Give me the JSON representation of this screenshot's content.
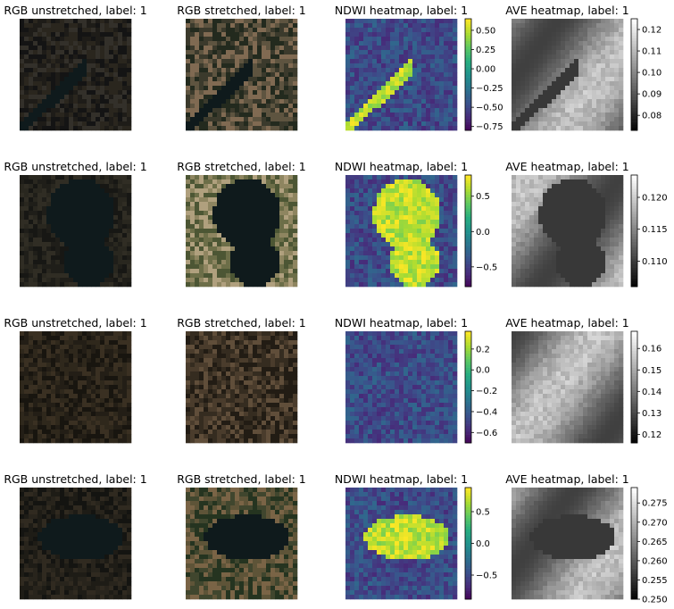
{
  "chart_data": [
    {
      "type": "image",
      "row": 0,
      "col": 0,
      "title": "RGB unstretched, label: 1",
      "kind": "rgb",
      "palette": [
        "#141414",
        "#1e1c18",
        "#2a261e",
        "#33302a"
      ],
      "water": "diag"
    },
    {
      "type": "image",
      "row": 0,
      "col": 1,
      "title": "RGB stretched, label: 1",
      "kind": "rgb",
      "palette": [
        "#232a1e",
        "#3b3a2c",
        "#5e5440",
        "#806a52"
      ],
      "water": "diag"
    },
    {
      "type": "heatmap",
      "row": 0,
      "col": 2,
      "title": "NDWI heatmap, label: 1",
      "cmap": "viridis",
      "colorbar": {
        "ticks": [
          0.5,
          0.25,
          0.0,
          -0.25,
          -0.5,
          -0.75
        ],
        "tick_labels": [
          "0.50",
          "0.25",
          "0.00",
          "−0.25",
          "−0.50",
          "−0.75"
        ],
        "range": [
          -0.8,
          0.65
        ]
      },
      "water": "diag"
    },
    {
      "type": "heatmap",
      "row": 0,
      "col": 3,
      "title": "AVE heatmap, label: 1",
      "cmap": "gray",
      "colorbar": {
        "ticks": [
          0.12,
          0.11,
          0.1,
          0.09,
          0.08
        ],
        "tick_labels": [
          "0.12",
          "0.11",
          "0.10",
          "0.09",
          "0.08"
        ],
        "range": [
          0.073,
          0.125
        ]
      },
      "water": "diag"
    },
    {
      "type": "image",
      "row": 1,
      "col": 0,
      "title": "RGB unstretched, label: 1",
      "kind": "rgb",
      "palette": [
        "#171714",
        "#1f1e19",
        "#29271f",
        "#302d24"
      ],
      "water": "seahorse"
    },
    {
      "type": "image",
      "row": 1,
      "col": 1,
      "title": "RGB stretched, label: 1",
      "kind": "rgb",
      "palette": [
        "#4c5634",
        "#6c6e48",
        "#8e8560",
        "#b0a07e"
      ],
      "water": "seahorse"
    },
    {
      "type": "heatmap",
      "row": 1,
      "col": 2,
      "title": "NDWI heatmap, label: 1",
      "cmap": "viridis",
      "colorbar": {
        "ticks": [
          0.5,
          0.0,
          -0.5
        ],
        "tick_labels": [
          "0.5",
          "0.0",
          "−0.5"
        ],
        "range": [
          -0.78,
          0.8
        ]
      },
      "water": "seahorse"
    },
    {
      "type": "heatmap",
      "row": 1,
      "col": 3,
      "title": "AVE heatmap, label: 1",
      "cmap": "gray",
      "colorbar": {
        "ticks": [
          0.12,
          0.115,
          0.11
        ],
        "tick_labels": [
          "0.120",
          "0.115",
          "0.110"
        ],
        "range": [
          0.106,
          0.1235
        ]
      },
      "water": "seahorse"
    },
    {
      "type": "image",
      "row": 2,
      "col": 0,
      "title": "RGB unstretched, label: 1",
      "kind": "rgb",
      "palette": [
        "#18150f",
        "#231e16",
        "#2f281c",
        "#3a3022"
      ],
      "water": "none"
    },
    {
      "type": "image",
      "row": 2,
      "col": 1,
      "title": "RGB stretched, label: 1",
      "kind": "rgb",
      "palette": [
        "#221c14",
        "#352c20",
        "#4a3c2c",
        "#604e3a"
      ],
      "water": "none"
    },
    {
      "type": "heatmap",
      "row": 2,
      "col": 2,
      "title": "NDWI heatmap, label: 1",
      "cmap": "viridis",
      "colorbar": {
        "ticks": [
          0.2,
          0.0,
          -0.2,
          -0.4,
          -0.6
        ],
        "tick_labels": [
          "0.2",
          "0.0",
          "−0.2",
          "−0.4",
          "−0.6"
        ],
        "range": [
          -0.7,
          0.37
        ]
      },
      "water": "none"
    },
    {
      "type": "heatmap",
      "row": 2,
      "col": 3,
      "title": "AVE heatmap, label: 1",
      "cmap": "gray",
      "colorbar": {
        "ticks": [
          0.16,
          0.15,
          0.14,
          0.13,
          0.12
        ],
        "tick_labels": [
          "0.16",
          "0.15",
          "0.14",
          "0.13",
          "0.12"
        ],
        "range": [
          0.116,
          0.168
        ]
      },
      "water": "none"
    },
    {
      "type": "image",
      "row": 3,
      "col": 0,
      "title": "RGB unstretched, label: 1",
      "kind": "rgb",
      "palette": [
        "#141411",
        "#1e1c16",
        "#28241c",
        "#302a20"
      ],
      "water": "blob"
    },
    {
      "type": "image",
      "row": 3,
      "col": 1,
      "title": "RGB stretched, label: 1",
      "kind": "rgb",
      "palette": [
        "#253420",
        "#40462e",
        "#5e5438",
        "#7a6446"
      ],
      "water": "blob"
    },
    {
      "type": "heatmap",
      "row": 3,
      "col": 2,
      "title": "NDWI heatmap, label: 1",
      "cmap": "viridis",
      "colorbar": {
        "ticks": [
          0.5,
          0.0,
          -0.5
        ],
        "tick_labels": [
          "0.5",
          "0.0",
          "−0.5"
        ],
        "range": [
          -0.88,
          0.88
        ]
      },
      "water": "blob"
    },
    {
      "type": "heatmap",
      "row": 3,
      "col": 3,
      "title": "AVE heatmap, label: 1",
      "cmap": "gray",
      "colorbar": {
        "ticks": [
          0.275,
          0.27,
          0.265,
          0.26,
          0.255,
          0.25
        ],
        "tick_labels": [
          "0.275",
          "0.270",
          "0.265",
          "0.260",
          "0.255",
          "0.250"
        ],
        "range": [
          0.25,
          0.279
        ]
      },
      "water": "blob"
    }
  ]
}
